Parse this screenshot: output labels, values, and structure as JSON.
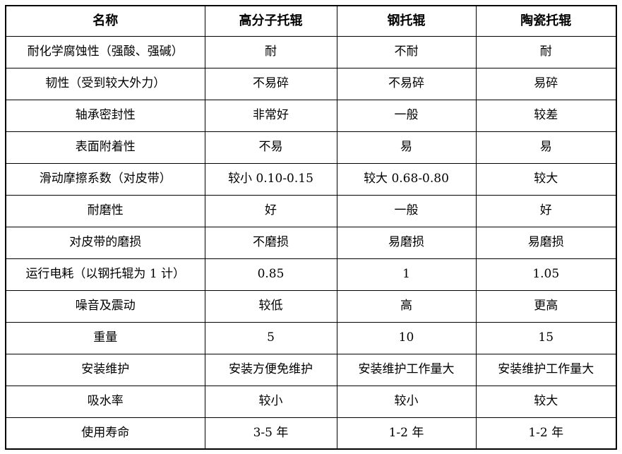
{
  "table": {
    "title_semantic": "roller-type-comparison",
    "border_color": "#000000",
    "background_color": "#ffffff",
    "text_color": "#000000",
    "header": [
      "名称",
      "高分子托辊",
      "钢托辊",
      "陶瓷托辊"
    ],
    "rows": [
      [
        "耐化学腐蚀性（强酸、强碱）",
        "耐",
        "不耐",
        "耐"
      ],
      [
        "韧性（受到较大外力）",
        "不易碎",
        "不易碎",
        "易碎"
      ],
      [
        "轴承密封性",
        "非常好",
        "一般",
        "较差"
      ],
      [
        "表面附着性",
        "不易",
        "易",
        "易"
      ],
      [
        "滑动摩擦系数（对皮带）",
        "较小 0.10-0.15",
        "较大 0.68-0.80",
        "较大"
      ],
      [
        "耐磨性",
        "好",
        "一般",
        "好"
      ],
      [
        "对皮带的磨损",
        "不磨损",
        "易磨损",
        "易磨损"
      ],
      [
        "运行电耗（以钢托辊为 1 计）",
        "0.85",
        "1",
        "1.05"
      ],
      [
        "噪音及震动",
        "较低",
        "高",
        "更高"
      ],
      [
        "重量",
        "5",
        "10",
        "15"
      ],
      [
        "安装维护",
        "安装方便免维护",
        "安装维护工作量大",
        "安装维护工作量大"
      ],
      [
        "吸水率",
        "较小",
        "较小",
        "较大"
      ],
      [
        "使用寿命",
        "3-5 年",
        "1-2 年",
        "1-2 年"
      ]
    ]
  }
}
